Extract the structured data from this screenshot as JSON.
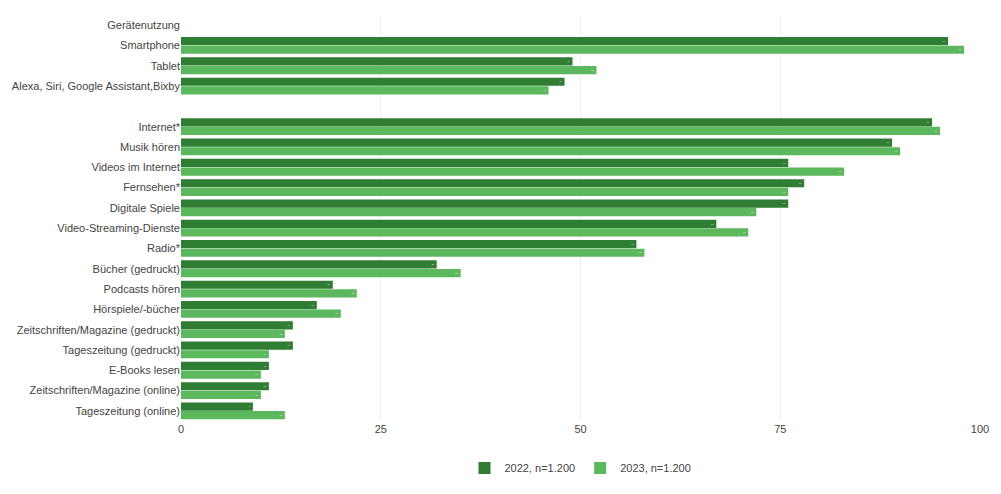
{
  "chart_data": {
    "type": "bar",
    "orientation": "horizontal",
    "categories": [
      "Gerätenutzung",
      "Smartphone",
      "Tablet",
      "Alexa, Siri, Google Assistant,Bixby",
      null,
      "Internet*",
      "Musik hören",
      "Videos im Internet",
      "Fernsehen*",
      "Digitale Spiele",
      "Video-Streaming-Dienste",
      "Radio*",
      "Bücher (gedruckt)",
      "Podcasts hören",
      "Hörspiele/-bücher",
      "Zeitschriften/Magazine (gedruckt)",
      "Tageszeitung (gedruckt)",
      "E-Books lesen",
      "Zeitschriften/Magazine (online)",
      "Tageszeitung (online)"
    ],
    "series": [
      {
        "name": "2022, n=1.200",
        "color": "#2e7d32",
        "values": [
          null,
          96,
          49,
          48,
          null,
          94,
          89,
          76,
          78,
          76,
          67,
          57,
          32,
          19,
          17,
          14,
          14,
          11,
          11,
          9
        ]
      },
      {
        "name": "2023, n=1.200",
        "color": "#5cb85c",
        "values": [
          null,
          98,
          52,
          46,
          null,
          95,
          90,
          83,
          76,
          72,
          71,
          58,
          35,
          22,
          20,
          13,
          11,
          10,
          10,
          13
        ]
      }
    ],
    "xlim": [
      0,
      100
    ],
    "xticks": [
      0,
      25,
      50,
      75,
      100
    ],
    "grid": true,
    "data_labels": true,
    "legend": "bottom"
  }
}
